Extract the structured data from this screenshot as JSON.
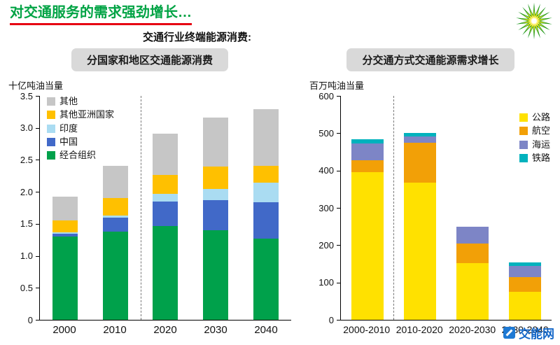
{
  "page": {
    "title": "对交通服务的需求强劲增长…",
    "subtitle": "交通行业终端能源消费:",
    "watermark": "交能网",
    "title_color": "#00a344",
    "title_underline_color": "#e60012",
    "watermark_color": "#1467c8",
    "logo_icon": "bp-helios-icon",
    "watermark_icon": "watermark-logo-icon"
  },
  "chart_data": [
    {
      "type": "bar",
      "stacked": true,
      "title": "分国家和地区交通能源消费",
      "unit_label": "十亿吨油当量",
      "categories": [
        "2000",
        "2010",
        "2020",
        "2030",
        "2040"
      ],
      "series": [
        {
          "name": "经合组织",
          "color": "#00a14b",
          "values": [
            1.3,
            1.38,
            1.47,
            1.4,
            1.27
          ]
        },
        {
          "name": "中国",
          "color": "#4169c8",
          "values": [
            0.05,
            0.22,
            0.38,
            0.47,
            0.57
          ]
        },
        {
          "name": "印度",
          "color": "#aadcf2",
          "values": [
            0.02,
            0.03,
            0.12,
            0.18,
            0.3
          ]
        },
        {
          "name": "其他亚洲国家",
          "color": "#ffc000",
          "values": [
            0.18,
            0.27,
            0.29,
            0.35,
            0.27
          ]
        },
        {
          "name": "其他",
          "color": "#c6c6c6",
          "values": [
            0.38,
            0.51,
            0.65,
            0.76,
            0.88
          ]
        }
      ],
      "ylim": [
        0,
        3.5
      ],
      "yticks": [
        "3.5",
        "3.0",
        "2.5",
        "2.0",
        "1.5",
        "1.0",
        "0.5",
        "0"
      ],
      "legend_position": "top-left",
      "legend_reversed": true,
      "divider_after_category_index": 1,
      "grid": false
    },
    {
      "type": "bar",
      "stacked": true,
      "title": "分交通方式交通能源需求增长",
      "unit_label": "百万吨油当量",
      "categories": [
        "2000-2010",
        "2010-2020",
        "2020-2030",
        "2030-2040"
      ],
      "series": [
        {
          "name": "公路",
          "color": "#ffe100",
          "values": [
            395,
            367,
            151,
            75
          ]
        },
        {
          "name": "航空",
          "color": "#f2a007",
          "values": [
            32,
            108,
            54,
            39
          ]
        },
        {
          "name": "海运",
          "color": "#7d85c6",
          "values": [
            45,
            17,
            44,
            31
          ]
        },
        {
          "name": "铁路",
          "color": "#00b2bd",
          "values": [
            11,
            8,
            0,
            9
          ]
        }
      ],
      "ylim": [
        0,
        600
      ],
      "yticks": [
        "600",
        "500",
        "400",
        "300",
        "200",
        "100",
        "0"
      ],
      "legend_position": "top-right",
      "legend_reversed": false,
      "divider_after_category_index": 0,
      "grid": false
    }
  ]
}
